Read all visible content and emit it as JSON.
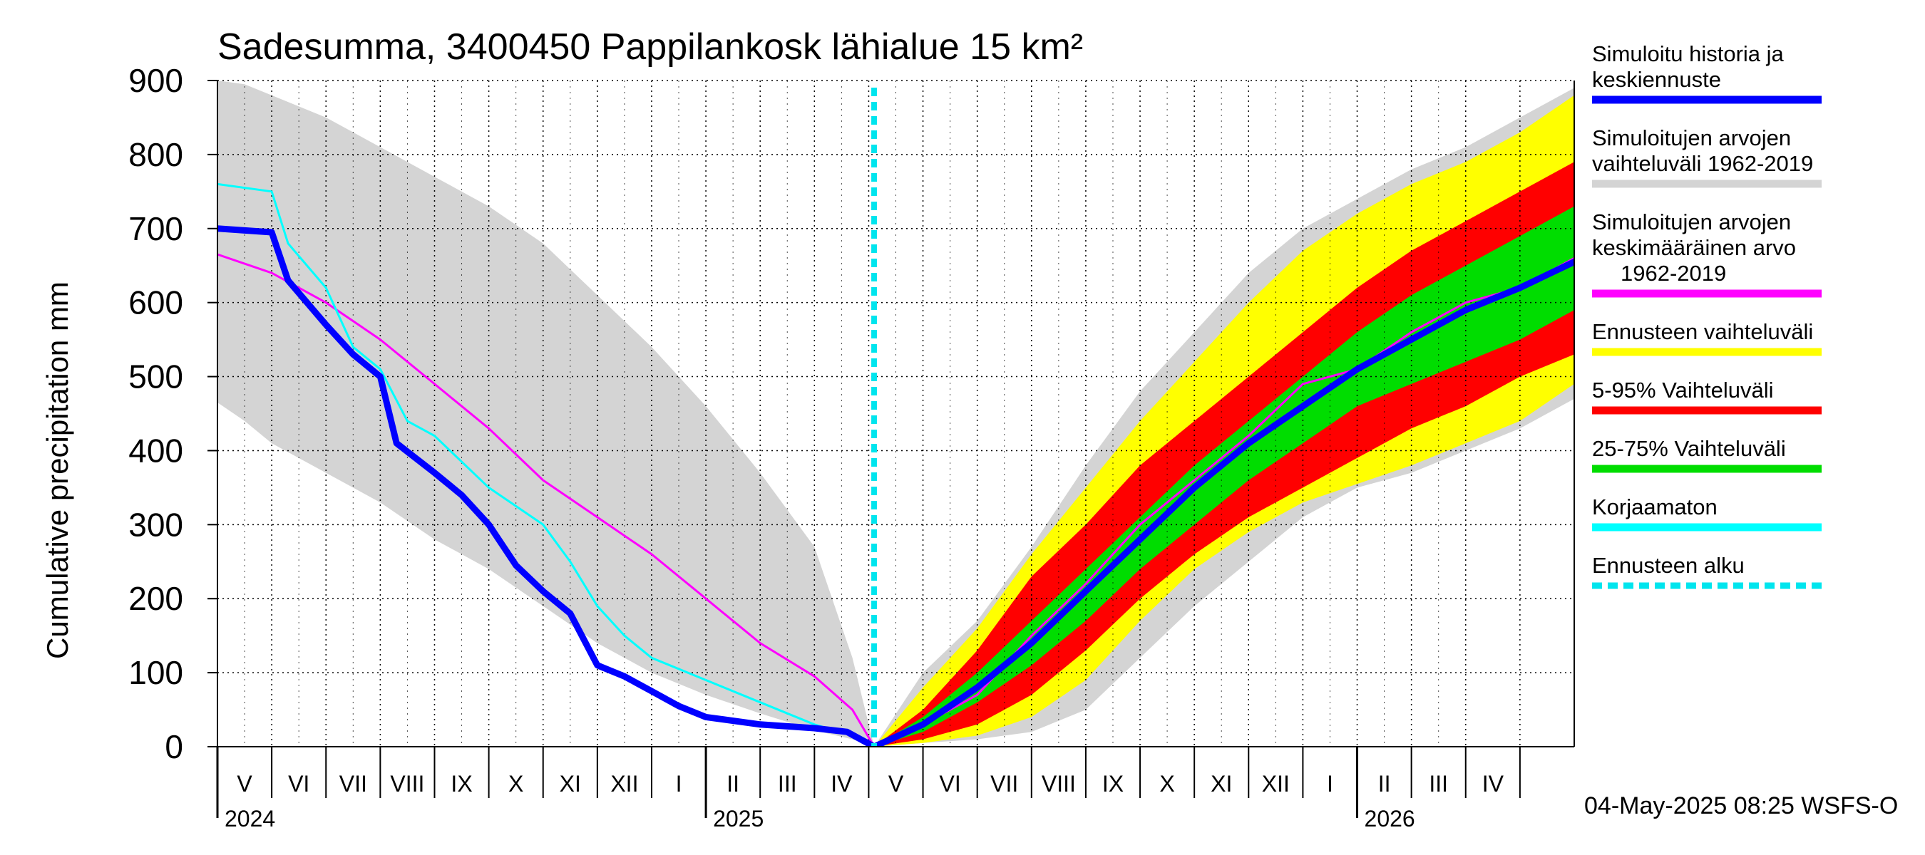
{
  "chart_data": {
    "type": "area",
    "title": "Sadesumma, 3400450 Pappilankosk lähialue 15 km²",
    "ylabel": "Cumulative precipitation   mm",
    "xlabel": "",
    "ylim": [
      0,
      900
    ],
    "yticks": [
      0,
      100,
      200,
      300,
      400,
      500,
      600,
      700,
      800,
      900
    ],
    "grid": true,
    "x_unit": "months since 2024-04-01",
    "xlim": [
      0,
      25.0
    ],
    "months": [
      "V",
      "VI",
      "VII",
      "VIII",
      "IX",
      "X",
      "XI",
      "XII",
      "I",
      "II",
      "III",
      "IV",
      "V",
      "VI",
      "VII",
      "VIII",
      "IX",
      "X",
      "XI",
      "XII",
      "I",
      "II",
      "III",
      "IV"
    ],
    "years": [
      {
        "label": "2024",
        "x": 0
      },
      {
        "label": "2025",
        "x": 9
      },
      {
        "label": "2026",
        "x": 21
      }
    ],
    "forecast_start": 12.1,
    "series": [
      {
        "name": "Simuloitujen arvojen vaihteluväli 1962-2019",
        "kind": "band",
        "color": "#d4d4d4",
        "x": [
          0,
          0.5,
          1,
          2,
          3,
          4,
          5,
          6,
          7,
          8,
          9,
          10,
          11,
          11.7,
          12.1,
          13,
          14,
          15,
          16,
          17,
          18,
          19,
          20,
          21,
          22,
          23,
          24,
          25
        ],
        "upper": [
          900,
          895,
          880,
          850,
          810,
          770,
          730,
          680,
          610,
          540,
          460,
          370,
          270,
          120,
          0,
          100,
          170,
          270,
          380,
          480,
          560,
          640,
          700,
          740,
          780,
          810,
          850,
          890
        ],
        "lower": [
          465,
          440,
          410,
          370,
          330,
          280,
          240,
          190,
          140,
          100,
          70,
          45,
          22,
          10,
          0,
          5,
          10,
          20,
          50,
          120,
          190,
          250,
          310,
          350,
          370,
          400,
          430,
          470
        ]
      },
      {
        "name": "Ennusteen vaihteluväli",
        "kind": "band",
        "color": "#ffff00",
        "x": [
          12.1,
          13,
          14,
          15,
          16,
          17,
          18,
          19,
          20,
          21,
          22,
          23,
          24,
          25
        ],
        "upper": [
          0,
          80,
          160,
          260,
          350,
          440,
          520,
          600,
          670,
          720,
          760,
          790,
          830,
          880
        ],
        "lower": [
          0,
          5,
          15,
          40,
          90,
          170,
          240,
          290,
          330,
          355,
          380,
          410,
          440,
          490
        ]
      },
      {
        "name": "5-95% Vaihteluväli",
        "kind": "band",
        "color": "#ff0000",
        "x": [
          12.1,
          13,
          14,
          15,
          16,
          17,
          18,
          19,
          20,
          21,
          22,
          23,
          24,
          25
        ],
        "upper": [
          0,
          50,
          130,
          230,
          300,
          380,
          440,
          500,
          560,
          620,
          670,
          710,
          750,
          790
        ],
        "lower": [
          0,
          10,
          30,
          70,
          130,
          200,
          260,
          310,
          350,
          390,
          430,
          460,
          500,
          530
        ]
      },
      {
        "name": "25-75% Vaihteluväli",
        "kind": "band",
        "color": "#00dd00",
        "x": [
          12.1,
          13,
          14,
          15,
          16,
          17,
          18,
          19,
          20,
          21,
          22,
          23,
          24,
          25
        ],
        "upper": [
          0,
          40,
          100,
          170,
          240,
          310,
          380,
          440,
          500,
          560,
          610,
          650,
          690,
          730
        ],
        "lower": [
          0,
          20,
          60,
          110,
          170,
          240,
          300,
          360,
          410,
          460,
          490,
          520,
          550,
          590
        ]
      },
      {
        "name": "Simuloitujen arvojen keskimääräinen arvo 1962-2019",
        "kind": "line",
        "color": "#ff00ff",
        "width": 3,
        "x": [
          0,
          1,
          2,
          3,
          4,
          5,
          6,
          7,
          8,
          9,
          10,
          11,
          11.7,
          12.1,
          13,
          14,
          15,
          16,
          17,
          18,
          19,
          20,
          21,
          22,
          23,
          24,
          25
        ],
        "y": [
          665,
          640,
          600,
          550,
          490,
          430,
          360,
          310,
          260,
          200,
          140,
          95,
          50,
          0,
          30,
          70,
          150,
          220,
          300,
          360,
          420,
          490,
          510,
          560,
          600,
          620,
          660
        ]
      },
      {
        "name": "Korjaamaton",
        "kind": "line",
        "color": "#00ffff",
        "width": 3,
        "x": [
          0,
          1,
          1.3,
          2,
          2.5,
          3,
          3.5,
          4,
          5,
          6,
          6.5,
          7,
          7.5,
          8,
          9,
          10,
          11,
          11.7,
          12.1
        ],
        "y": [
          760,
          750,
          680,
          620,
          540,
          510,
          440,
          420,
          350,
          300,
          250,
          190,
          150,
          120,
          90,
          60,
          30,
          15,
          0
        ]
      },
      {
        "name": "Simuloitu historia ja keskiennuste",
        "kind": "line",
        "color": "#0000ff",
        "width": 9,
        "x": [
          0,
          1,
          1.3,
          2,
          2.5,
          3,
          3.3,
          4,
          4.5,
          5,
          5.5,
          6,
          6.5,
          7,
          7.5,
          8,
          8.5,
          9,
          10,
          11,
          11.6,
          12.1,
          13,
          14,
          15,
          16,
          17,
          18,
          19,
          20,
          21,
          22,
          23,
          24,
          25
        ],
        "y": [
          700,
          695,
          630,
          570,
          530,
          500,
          410,
          370,
          340,
          300,
          245,
          210,
          180,
          110,
          95,
          75,
          55,
          40,
          30,
          25,
          20,
          0,
          30,
          80,
          140,
          210,
          280,
          350,
          410,
          460,
          510,
          550,
          590,
          620,
          655
        ]
      }
    ],
    "legend": [
      {
        "label": "Simuloitu historia ja keskiennuste",
        "color": "#0000ff",
        "style": "solid"
      },
      {
        "label": "Simuloitujen arvojen vaihteluväli 1962-2019",
        "color": "#d4d4d4",
        "style": "solid"
      },
      {
        "label": "Simuloitujen arvojen keskimääräinen arvo 1962-2019",
        "color": "#ff00ff",
        "style": "solid"
      },
      {
        "label": "Ennusteen vaihteluväli",
        "color": "#ffff00",
        "style": "solid"
      },
      {
        "label": "5-95% Vaihteluväli",
        "color": "#ff0000",
        "style": "solid"
      },
      {
        "label": "25-75% Vaihteluväli",
        "color": "#00dd00",
        "style": "solid"
      },
      {
        "label": "Korjaamaton",
        "color": "#00ffff",
        "style": "solid"
      },
      {
        "label": "Ennusteen alku",
        "color": "#00e5ee",
        "style": "dashed"
      }
    ],
    "footer": "04-May-2025 08:25 WSFS-O"
  }
}
